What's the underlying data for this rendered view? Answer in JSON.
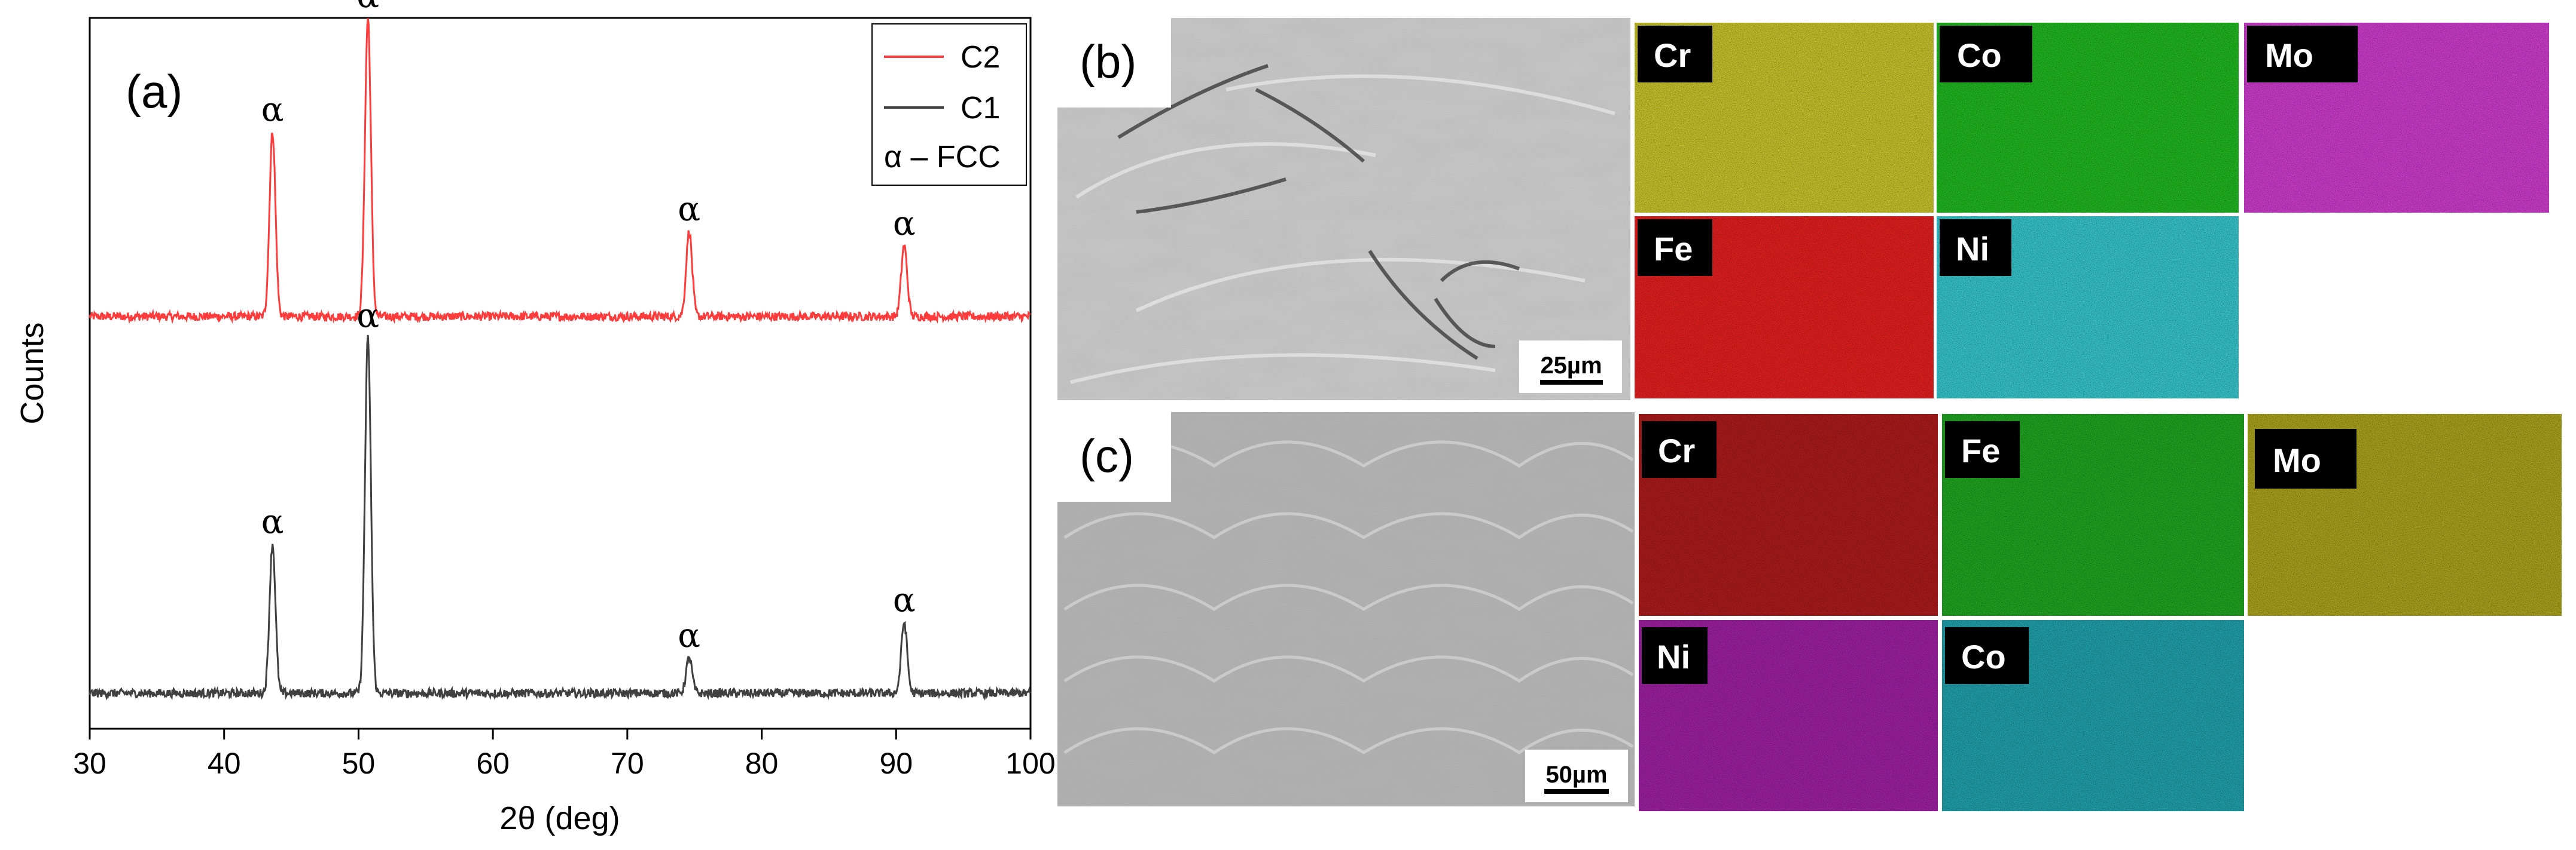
{
  "chart_data": {
    "type": "line",
    "panel_label": "(a)",
    "xlabel": "2θ (deg)",
    "ylabel": "Counts",
    "xlim": [
      30,
      100
    ],
    "xticks": [
      30,
      40,
      50,
      60,
      70,
      80,
      90,
      100
    ],
    "yticks_visible": false,
    "grid": false,
    "legend_placement": "top-right",
    "legend": [
      {
        "name": "C2",
        "color": "#ff3b3b"
      },
      {
        "name": "C1",
        "color": "#404040"
      },
      {
        "name": "α – FCC",
        "color": ""
      }
    ],
    "series": [
      {
        "name": "C2",
        "color": "#ff3b3b",
        "baseline": 0.58,
        "noise": 0.006,
        "peaks": [
          {
            "x": 43.6,
            "height": 0.26,
            "label": "α"
          },
          {
            "x": 50.7,
            "height": 0.42,
            "label": "α"
          },
          {
            "x": 74.6,
            "height": 0.12,
            "label": "α"
          },
          {
            "x": 90.6,
            "height": 0.1,
            "label": "α"
          }
        ]
      },
      {
        "name": "C1",
        "color": "#404040",
        "baseline": 0.05,
        "noise": 0.006,
        "peaks": [
          {
            "x": 43.6,
            "height": 0.21,
            "label": "α"
          },
          {
            "x": 50.7,
            "height": 0.5,
            "label": "α"
          },
          {
            "x": 74.6,
            "height": 0.05,
            "label": "α"
          },
          {
            "x": 90.6,
            "height": 0.1,
            "label": "α"
          }
        ]
      }
    ]
  },
  "panel_b": {
    "label": "(b)",
    "scale_bar": "25µm",
    "maps": [
      {
        "element": "Cr",
        "color": "#c4c02a"
      },
      {
        "element": "Co",
        "color": "#1fb41f"
      },
      {
        "element": "Mo",
        "color": "#c93bc9"
      },
      {
        "element": "Fe",
        "color": "#e01e1e"
      },
      {
        "element": "Ni",
        "color": "#35c2c8"
      }
    ]
  },
  "panel_c": {
    "label": "(c)",
    "scale_bar": "50µm",
    "maps": [
      {
        "element": "Cr",
        "color": "#a81a1a"
      },
      {
        "element": "Fe",
        "color": "#1fa21f"
      },
      {
        "element": "Mo",
        "color": "#a7a01c"
      },
      {
        "element": "Ni",
        "color": "#9a1f9e"
      },
      {
        "element": "Co",
        "color": "#1f9ea8"
      }
    ]
  }
}
